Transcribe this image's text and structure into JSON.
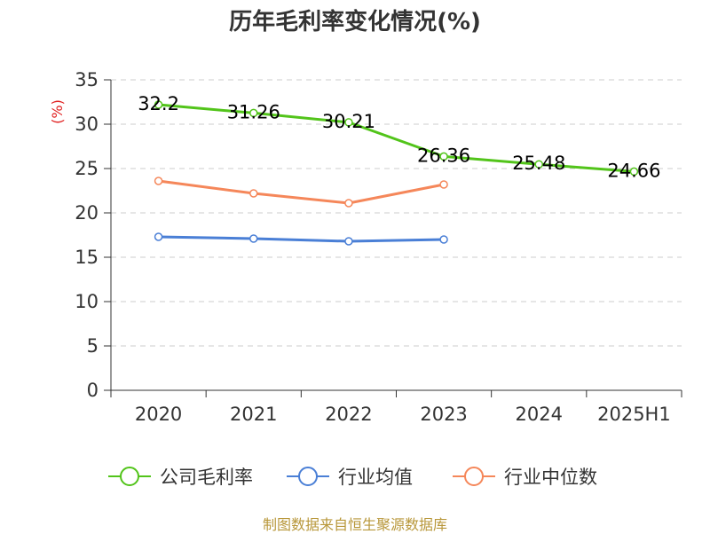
{
  "chart_data": {
    "type": "line",
    "title": "历年毛利率变化情况(%)",
    "ylabel": "(%)",
    "xlabel": "",
    "categories": [
      "2020",
      "2021",
      "2022",
      "2023",
      "2024",
      "2025H1"
    ],
    "ylim": [
      0,
      35
    ],
    "yticks": [
      0,
      5,
      10,
      15,
      20,
      25,
      30,
      35
    ],
    "grid": true,
    "legend_position": "bottom",
    "series": [
      {
        "name": "公司毛利率",
        "color": "#52c41a",
        "values": [
          32.2,
          31.26,
          30.21,
          26.36,
          25.48,
          24.66
        ],
        "labels": [
          "32.2",
          "31.26",
          "30.21",
          "26.36",
          "25.48",
          "24.66"
        ]
      },
      {
        "name": "行业均值",
        "color": "#4a7fd6",
        "values": [
          17.3,
          17.1,
          16.8,
          17.0,
          null,
          null
        ]
      },
      {
        "name": "行业中位数",
        "color": "#f5875a",
        "values": [
          23.6,
          22.2,
          21.1,
          23.2,
          null,
          null
        ]
      }
    ]
  },
  "footer": "制图数据来自恒生聚源数据库"
}
